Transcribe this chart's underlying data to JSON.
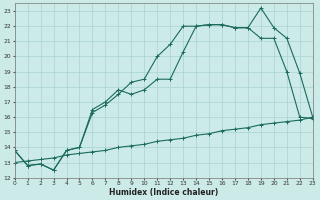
{
  "xlabel": "Humidex (Indice chaleur)",
  "xlim": [
    0,
    23
  ],
  "ylim": [
    12,
    23.5
  ],
  "yticks": [
    12,
    13,
    14,
    15,
    16,
    17,
    18,
    19,
    20,
    21,
    22,
    23
  ],
  "xticks": [
    0,
    1,
    2,
    3,
    4,
    5,
    6,
    7,
    8,
    9,
    10,
    11,
    12,
    13,
    14,
    15,
    16,
    17,
    18,
    19,
    20,
    21,
    22,
    23
  ],
  "bg_color": "#cceae7",
  "grid_color": "#aad4d0",
  "line_color": "#1a6b5a",
  "line1_x": [
    0,
    1,
    2,
    3,
    4,
    5,
    6,
    7,
    8,
    9,
    10,
    11,
    12,
    13,
    14,
    15,
    16,
    17,
    18,
    19,
    20,
    21,
    22,
    23
  ],
  "line1_y": [
    13.8,
    12.8,
    12.9,
    12.5,
    13.8,
    14.0,
    16.5,
    17.0,
    17.8,
    17.5,
    17.8,
    18.5,
    18.5,
    20.3,
    22.0,
    22.1,
    22.1,
    21.9,
    21.9,
    23.2,
    21.9,
    21.2,
    18.9,
    16.0
  ],
  "line2_x": [
    0,
    1,
    2,
    3,
    4,
    5,
    6,
    7,
    8,
    9,
    10,
    11,
    12,
    13,
    14,
    15,
    16,
    17,
    18,
    19,
    20,
    21,
    22,
    23
  ],
  "line2_y": [
    13.8,
    12.8,
    12.9,
    12.5,
    13.8,
    14.0,
    16.3,
    16.8,
    17.5,
    18.3,
    18.5,
    20.0,
    20.8,
    22.0,
    22.0,
    22.1,
    22.1,
    21.9,
    21.9,
    21.2,
    21.2,
    19.0,
    16.0,
    15.9
  ],
  "line3_x": [
    0,
    1,
    2,
    3,
    4,
    5,
    6,
    7,
    8,
    9,
    10,
    11,
    12,
    13,
    14,
    15,
    16,
    17,
    18,
    19,
    20,
    21,
    22,
    23
  ],
  "line3_y": [
    13.0,
    13.1,
    13.2,
    13.3,
    13.5,
    13.6,
    13.7,
    13.8,
    14.0,
    14.1,
    14.2,
    14.4,
    14.5,
    14.6,
    14.8,
    14.9,
    15.1,
    15.2,
    15.3,
    15.5,
    15.6,
    15.7,
    15.8,
    16.0
  ]
}
